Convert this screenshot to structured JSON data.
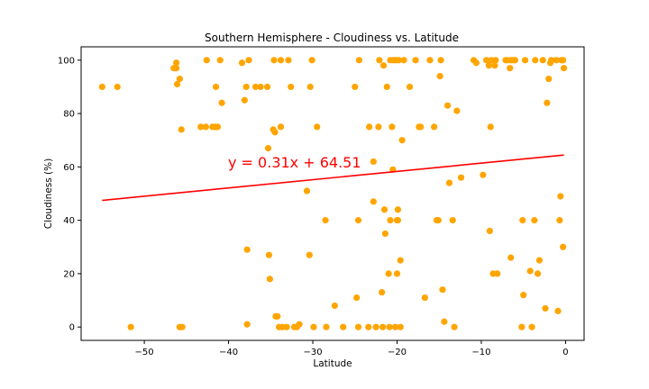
{
  "chart_data": {
    "type": "scatter",
    "title": "Southern Hemisphere - Cloudiness vs. Latitude",
    "xlabel": "Latitude",
    "ylabel": "Cloudiness (%)",
    "xlim": [
      -57.5,
      2.2
    ],
    "ylim": [
      -5,
      105
    ],
    "xticks": [
      -50,
      -40,
      -30,
      -20,
      -10,
      0
    ],
    "yticks": [
      0,
      20,
      40,
      60,
      80,
      100
    ],
    "grid": false,
    "point_color": "#ffa500",
    "line_color": "#ff0000",
    "regression": {
      "slope": 0.31,
      "intercept": 64.51,
      "x_range": [
        -55,
        -0.2
      ]
    },
    "equation_label": "y = 0.31x + 64.51",
    "equation_color": "#ff0000",
    "points": [
      [
        -55,
        90
      ],
      [
        -53.2,
        90
      ],
      [
        -51.6,
        0
      ],
      [
        -46.5,
        97
      ],
      [
        -46.2,
        99
      ],
      [
        -46.2,
        97
      ],
      [
        -46.1,
        91
      ],
      [
        -45.8,
        93
      ],
      [
        -45.8,
        0
      ],
      [
        -45.6,
        74
      ],
      [
        -45.5,
        0
      ],
      [
        -43.3,
        75
      ],
      [
        -42.7,
        75
      ],
      [
        -42.6,
        100
      ],
      [
        -41.9,
        75
      ],
      [
        -41.6,
        75
      ],
      [
        -41.5,
        90
      ],
      [
        -41.3,
        75
      ],
      [
        -41,
        100
      ],
      [
        -40.8,
        84
      ],
      [
        -38.4,
        99
      ],
      [
        -38.1,
        85
      ],
      [
        -37.9,
        90
      ],
      [
        -37.8,
        29
      ],
      [
        -37.8,
        1
      ],
      [
        -37.6,
        100
      ],
      [
        -36.8,
        90
      ],
      [
        -36.2,
        90
      ],
      [
        -35.4,
        90
      ],
      [
        -35.3,
        67
      ],
      [
        -35.2,
        27
      ],
      [
        -35.1,
        18
      ],
      [
        -34.7,
        74
      ],
      [
        -34.6,
        100
      ],
      [
        -34.5,
        73
      ],
      [
        -34.4,
        4
      ],
      [
        -34.2,
        4
      ],
      [
        -34,
        0
      ],
      [
        -33.8,
        75
      ],
      [
        -33.8,
        100
      ],
      [
        -33.6,
        0
      ],
      [
        -33.1,
        0
      ],
      [
        -32.9,
        100
      ],
      [
        -32.6,
        90
      ],
      [
        -32.2,
        0
      ],
      [
        -31.9,
        0
      ],
      [
        -31.6,
        1
      ],
      [
        -30.7,
        51
      ],
      [
        -30.4,
        27
      ],
      [
        -30.3,
        90
      ],
      [
        -30.1,
        100
      ],
      [
        -29.9,
        0
      ],
      [
        -29.5,
        75
      ],
      [
        -28.5,
        40
      ],
      [
        -28.4,
        0
      ],
      [
        -27.4,
        8
      ],
      [
        -26.4,
        0
      ],
      [
        -25,
        90
      ],
      [
        -24.8,
        11
      ],
      [
        -24.6,
        40
      ],
      [
        -24.6,
        0
      ],
      [
        -24.5,
        100
      ],
      [
        -23.4,
        0
      ],
      [
        -23.3,
        75
      ],
      [
        -22.8,
        62
      ],
      [
        -22.8,
        47
      ],
      [
        -22.5,
        0
      ],
      [
        -22.2,
        75
      ],
      [
        -22.1,
        100
      ],
      [
        -21.8,
        13
      ],
      [
        -21.7,
        0
      ],
      [
        -21.6,
        98
      ],
      [
        -21.5,
        44
      ],
      [
        -21.4,
        35
      ],
      [
        -21.2,
        90
      ],
      [
        -21,
        20
      ],
      [
        -20.9,
        0
      ],
      [
        -20.8,
        40
      ],
      [
        -20.8,
        100
      ],
      [
        -20.6,
        75
      ],
      [
        -20.5,
        59
      ],
      [
        -20.4,
        100
      ],
      [
        -20.2,
        0
      ],
      [
        -20.1,
        100
      ],
      [
        -20,
        40
      ],
      [
        -20,
        20
      ],
      [
        -19.9,
        40
      ],
      [
        -19.9,
        44
      ],
      [
        -19.8,
        100
      ],
      [
        -19.6,
        25
      ],
      [
        -19.6,
        0
      ],
      [
        -19.4,
        70
      ],
      [
        -19.2,
        100
      ],
      [
        -18.5,
        90
      ],
      [
        -17.8,
        100
      ],
      [
        -17.4,
        75
      ],
      [
        -17.2,
        75
      ],
      [
        -16.7,
        11
      ],
      [
        -16.1,
        100
      ],
      [
        -15.6,
        75
      ],
      [
        -15.3,
        40
      ],
      [
        -15.1,
        40
      ],
      [
        -14.9,
        94
      ],
      [
        -14.8,
        100
      ],
      [
        -14.6,
        14
      ],
      [
        -14.4,
        2
      ],
      [
        -14,
        83
      ],
      [
        -13.8,
        54
      ],
      [
        -13.4,
        40
      ],
      [
        -13.2,
        0
      ],
      [
        -12.9,
        81
      ],
      [
        -12.4,
        56
      ],
      [
        -10.9,
        100
      ],
      [
        -10.6,
        99
      ],
      [
        -9.8,
        57
      ],
      [
        -9.4,
        100
      ],
      [
        -9.1,
        98
      ],
      [
        -9,
        36
      ],
      [
        -8.9,
        75
      ],
      [
        -8.8,
        100
      ],
      [
        -8.6,
        20
      ],
      [
        -8.4,
        98
      ],
      [
        -8.3,
        100
      ],
      [
        -8.1,
        20
      ],
      [
        -7.1,
        100
      ],
      [
        -6.9,
        100
      ],
      [
        -6.6,
        97
      ],
      [
        -6.5,
        26
      ],
      [
        -6.5,
        100
      ],
      [
        -6.2,
        100
      ],
      [
        -6,
        100
      ],
      [
        -5.2,
        0
      ],
      [
        -5.1,
        40
      ],
      [
        -5,
        12
      ],
      [
        -4.8,
        100
      ],
      [
        -4.2,
        21
      ],
      [
        -4,
        0
      ],
      [
        -3.7,
        40
      ],
      [
        -3.6,
        100
      ],
      [
        -3.3,
        20
      ],
      [
        -3.1,
        25
      ],
      [
        -2.7,
        100
      ],
      [
        -2.4,
        7
      ],
      [
        -2.2,
        84
      ],
      [
        -2,
        93
      ],
      [
        -1.8,
        99
      ],
      [
        -1.7,
        100
      ],
      [
        -1.1,
        100
      ],
      [
        -0.9,
        6
      ],
      [
        -0.7,
        40
      ],
      [
        -0.6,
        49
      ],
      [
        -0.5,
        100
      ],
      [
        -0.3,
        30
      ],
      [
        -0.3,
        100
      ],
      [
        -0.2,
        97
      ]
    ]
  }
}
